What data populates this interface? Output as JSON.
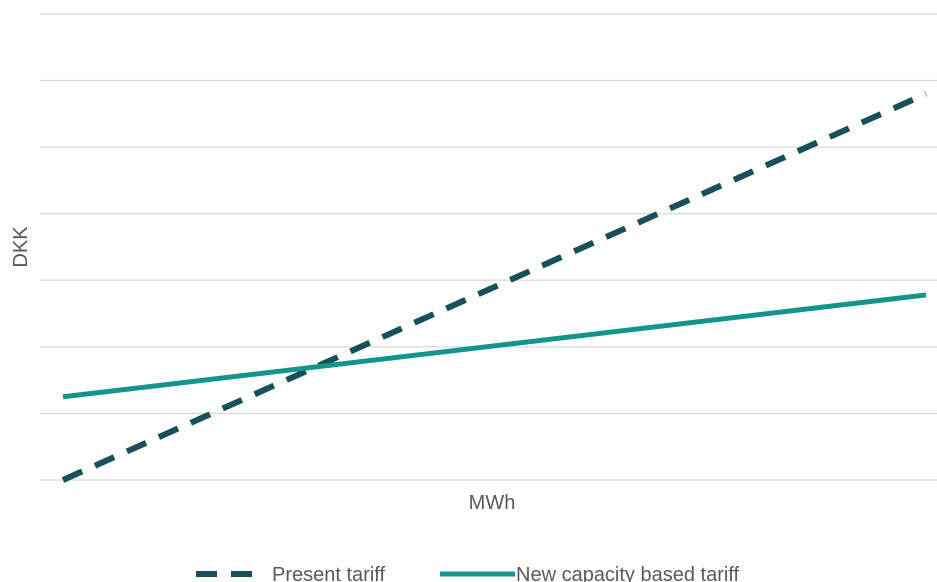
{
  "chart_data": {
    "type": "line",
    "title": "",
    "xlabel": "MWh",
    "ylabel": "DKK",
    "x": [
      0,
      1
    ],
    "ylim": [
      0,
      7
    ],
    "y_gridlines": [
      0,
      1,
      2,
      3,
      4,
      5,
      6,
      7
    ],
    "grid": true,
    "legend_position": "bottom",
    "series": [
      {
        "name": "Present tariff",
        "x": [
          0,
          1
        ],
        "values": [
          0,
          5.8
        ],
        "line_style": "dashed",
        "color": "#17505a"
      },
      {
        "name": "New capacity based tariff",
        "x": [
          0,
          1
        ],
        "values": [
          1.25,
          2.78
        ],
        "line_style": "solid",
        "color": "#13958e"
      }
    ]
  }
}
